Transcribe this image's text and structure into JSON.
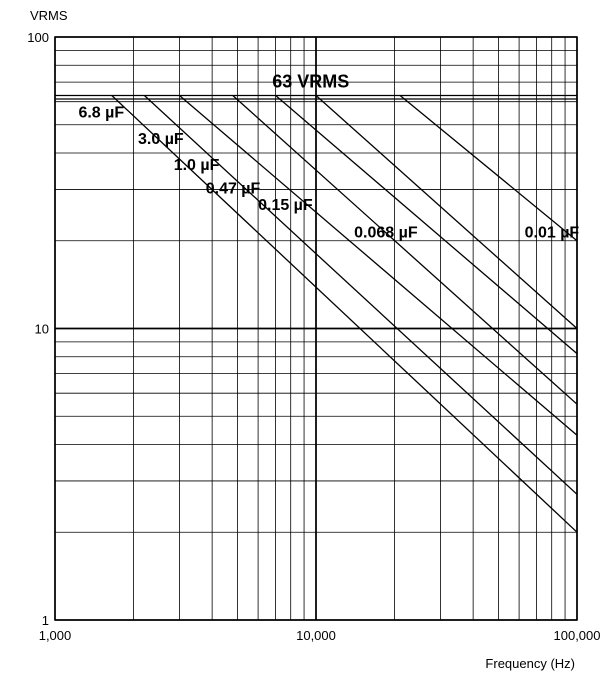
{
  "chart_data": {
    "type": "line",
    "title": "",
    "xlabel": "Frequency (Hz)",
    "ylabel": "VRMS",
    "xscale": "log",
    "yscale": "log",
    "xlim": [
      1000,
      100000
    ],
    "ylim": [
      1,
      100
    ],
    "grid": true,
    "x_tick_labels": [
      "1,000",
      "10,000",
      "100,000"
    ],
    "y_tick_labels": [
      "1",
      "10",
      "100"
    ],
    "annotation": "63 VRMS",
    "series": [
      {
        "name": "6.8 µF",
        "x": [
          1650,
          100000
        ],
        "y": [
          63,
          2.0
        ]
      },
      {
        "name": "3.0 µF",
        "x": [
          2200,
          100000
        ],
        "y": [
          63,
          2.7
        ]
      },
      {
        "name": "1.0 µF",
        "x": [
          3000,
          100000
        ],
        "y": [
          63,
          4.3
        ]
      },
      {
        "name": "0.47 µF",
        "x": [
          4800,
          100000
        ],
        "y": [
          63,
          5.5
        ]
      },
      {
        "name": "0.15 µF",
        "x": [
          7000,
          100000
        ],
        "y": [
          63,
          8.2
        ]
      },
      {
        "name": "0.068 µF",
        "x": [
          10000,
          100000
        ],
        "y": [
          63,
          10.0
        ]
      },
      {
        "name": "0.01 µF",
        "x": [
          21000,
          100000
        ],
        "y": [
          63,
          20.0
        ]
      }
    ]
  }
}
